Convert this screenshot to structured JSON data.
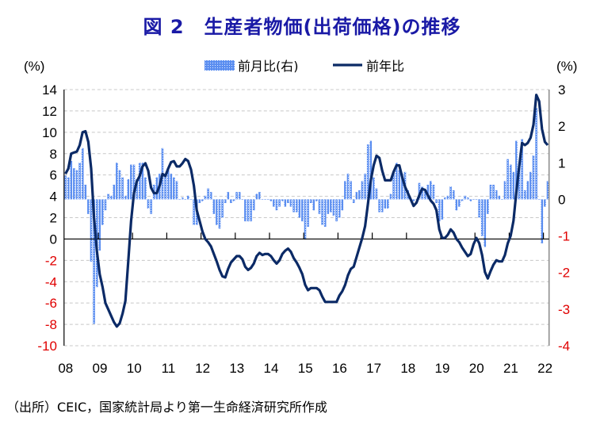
{
  "title": "図 2　生産者物価(出荷価格)の推移",
  "source": "（出所）CEIC，国家統計局より第一生命経済研究所作成",
  "colors": {
    "line": "#0b2a66",
    "bar": "#5b8ef0",
    "negative_label": "#e00000",
    "title": "#1a1aa6"
  },
  "chart_data": {
    "type": "bar+line",
    "left_unit": "(%)",
    "right_unit": "(%)",
    "left_ylim": [
      -10,
      14
    ],
    "left_ticks": [
      14,
      12,
      10,
      8,
      6,
      4,
      2,
      0,
      -2,
      -4,
      -6,
      -8,
      -10
    ],
    "right_ylim": [
      -4,
      3
    ],
    "right_ticks": [
      3,
      2,
      1,
      0,
      -1,
      -2,
      -3,
      -4
    ],
    "x_ticks": [
      "08",
      "09",
      "10",
      "11",
      "12",
      "13",
      "14",
      "15",
      "16",
      "17",
      "18",
      "19",
      "20",
      "21",
      "22"
    ],
    "x_start": "2008-01",
    "x_end": "2022-02",
    "grid": true,
    "legend_placement": "top-center",
    "series": [
      {
        "name": "前月比(右)",
        "type": "bar",
        "axis": "right",
        "values": [
          0.65,
          0.6,
          1.05,
          0.85,
          0.8,
          1.0,
          1.4,
          0.4,
          -0.4,
          -1.7,
          -3.4,
          -2.4,
          -1.4,
          -0.7,
          -0.3,
          0.15,
          0.1,
          0.4,
          1.0,
          0.8,
          0.6,
          0.1,
          0.55,
          0.95,
          0.95,
          0.55,
          1.0,
          1.0,
          0.6,
          -0.25,
          -0.4,
          0.4,
          0.6,
          0.7,
          1.4,
          0.7,
          0.8,
          0.7,
          0.6,
          0.5,
          0.0,
          0.05,
          0.0,
          0.1,
          0.0,
          -0.7,
          -0.7,
          -0.1,
          -0.05,
          0.1,
          0.3,
          0.2,
          -0.4,
          -0.7,
          -0.8,
          -0.5,
          -0.1,
          0.2,
          -0.1,
          -0.05,
          0.2,
          0.2,
          0.0,
          -0.6,
          -0.6,
          -0.6,
          -0.3,
          0.15,
          0.2,
          0.0,
          0.0,
          0.0,
          -0.05,
          -0.2,
          -0.3,
          -0.2,
          -0.05,
          -0.2,
          -0.1,
          -0.2,
          -0.35,
          -0.35,
          -0.5,
          -0.6,
          -1.1,
          -0.75,
          -0.1,
          -0.3,
          -0.05,
          -0.4,
          -0.7,
          -0.75,
          -0.4,
          -0.35,
          -0.45,
          -0.6,
          -0.5,
          -0.3,
          0.5,
          0.7,
          0.5,
          -0.1,
          0.2,
          0.25,
          0.5,
          0.7,
          1.5,
          1.6,
          0.6,
          0.3,
          -0.35,
          -0.35,
          -0.25,
          -0.25,
          0.15,
          0.75,
          1.0,
          0.8,
          0.7,
          0.75,
          0.25,
          0.0,
          -0.05,
          0.0,
          0.45,
          0.35,
          0.2,
          0.4,
          0.5,
          0.4,
          -0.1,
          -0.6,
          -0.55,
          0.05,
          0.1,
          0.35,
          0.25,
          -0.3,
          -0.2,
          -0.05,
          0.1,
          0.05,
          -0.05,
          0.0,
          0.0,
          -0.5,
          -1.0,
          -1.3,
          -0.4,
          0.4,
          0.4,
          0.25,
          0.1,
          0.0,
          0.5,
          1.1,
          0.95,
          0.75,
          1.6,
          0.9,
          1.65,
          0.25,
          0.5,
          0.75,
          1.2,
          2.5,
          0.0,
          -1.2,
          -0.2,
          0.5
        ]
      },
      {
        "name": "前年比",
        "type": "line",
        "axis": "left",
        "values": [
          6.1,
          6.6,
          8.0,
          8.1,
          8.2,
          8.8,
          10.0,
          10.1,
          9.1,
          6.6,
          2.0,
          -1.1,
          -3.3,
          -4.5,
          -6.0,
          -6.6,
          -7.2,
          -7.8,
          -8.2,
          -7.9,
          -7.0,
          -5.8,
          -2.1,
          1.7,
          4.3,
          5.4,
          5.9,
          6.8,
          7.1,
          6.4,
          4.8,
          4.3,
          4.3,
          5.0,
          6.1,
          5.9,
          6.6,
          7.2,
          7.3,
          6.8,
          6.8,
          7.1,
          7.5,
          7.3,
          6.5,
          5.0,
          2.7,
          1.7,
          0.7,
          0.0,
          -0.3,
          -0.7,
          -1.4,
          -2.1,
          -2.9,
          -3.5,
          -3.6,
          -2.8,
          -2.2,
          -1.9,
          -1.6,
          -1.6,
          -1.9,
          -2.6,
          -2.9,
          -2.7,
          -2.3,
          -1.6,
          -1.3,
          -1.5,
          -1.4,
          -1.4,
          -1.6,
          -2.0,
          -2.3,
          -2.0,
          -1.4,
          -1.1,
          -0.9,
          -1.2,
          -1.8,
          -2.2,
          -2.7,
          -3.3,
          -4.3,
          -4.8,
          -4.6,
          -4.6,
          -4.6,
          -4.8,
          -5.4,
          -5.9,
          -5.9,
          -5.9,
          -5.9,
          -5.9,
          -5.3,
          -4.9,
          -4.3,
          -3.4,
          -2.8,
          -2.6,
          -1.7,
          -0.8,
          0.1,
          1.2,
          3.3,
          5.5,
          6.9,
          7.8,
          7.6,
          6.4,
          5.5,
          5.5,
          5.5,
          6.3,
          6.9,
          6.9,
          5.8,
          4.9,
          4.3,
          3.7,
          3.1,
          3.4,
          4.1,
          4.7,
          4.6,
          4.1,
          3.6,
          3.3,
          2.7,
          0.9,
          0.1,
          0.1,
          0.4,
          0.9,
          0.6,
          0.0,
          -0.3,
          -0.8,
          -1.2,
          -1.6,
          -1.4,
          -0.5,
          0.1,
          -0.4,
          -1.5,
          -3.1,
          -3.7,
          -3.0,
          -2.4,
          -2.0,
          -2.1,
          -2.1,
          -1.5,
          -0.4,
          0.3,
          1.7,
          4.4,
          6.8,
          9.0,
          8.8,
          9.0,
          9.5,
          10.7,
          13.5,
          12.9,
          10.3,
          9.1,
          8.8
        ]
      }
    ]
  }
}
